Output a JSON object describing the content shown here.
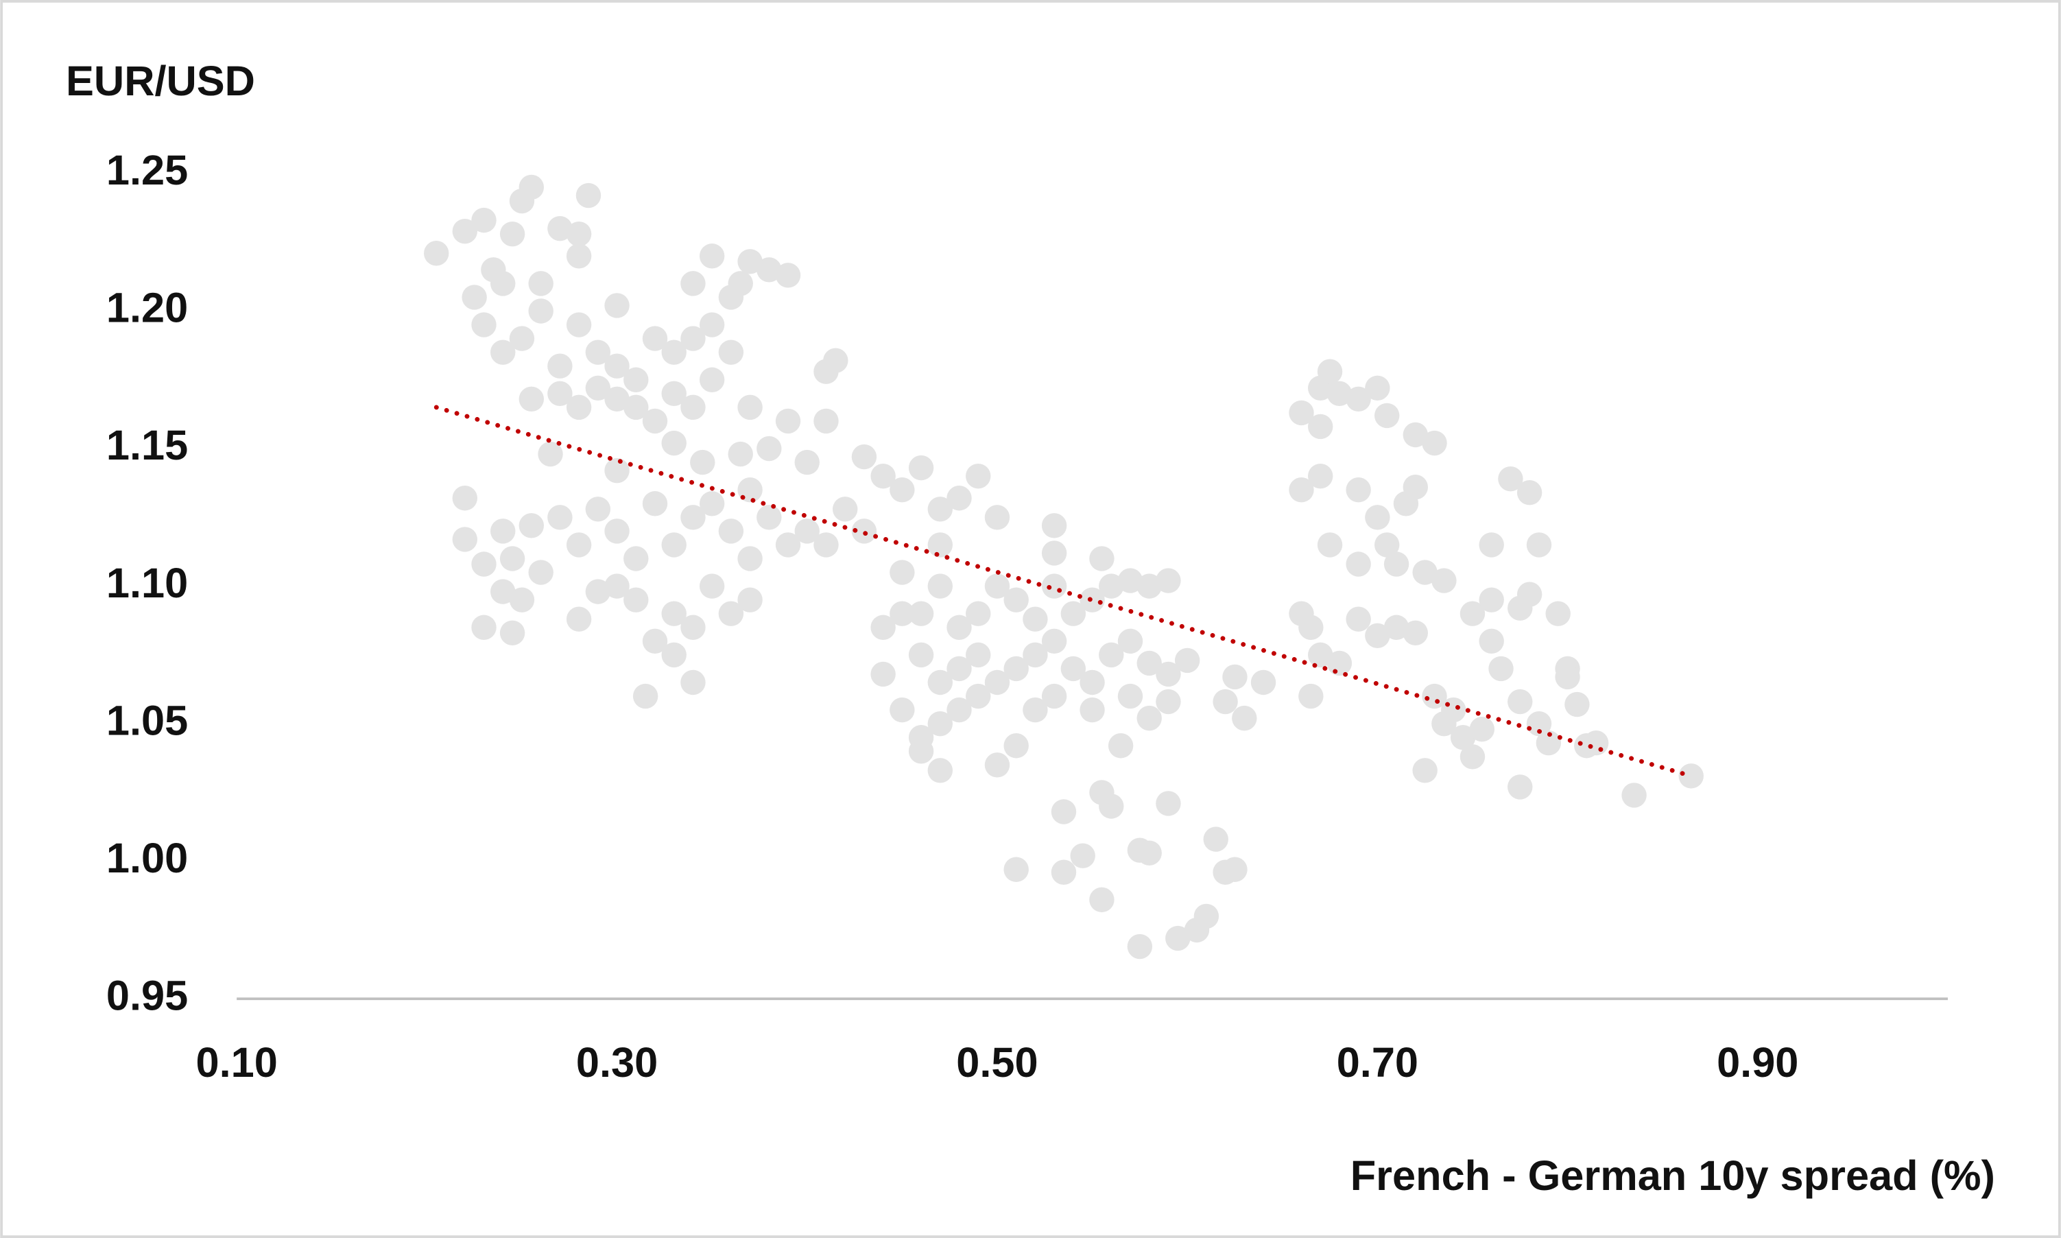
{
  "chart_data": {
    "type": "scatter",
    "y_axis_label": "EUR/USD",
    "x_axis_label": "French - German 10y spread (%)",
    "color": "#e3e3e3",
    "xlim": [
      0.1,
      1.0
    ],
    "ylim": [
      0.95,
      1.25
    ],
    "xticks": [
      {
        "value": 0.1,
        "label": "0.10"
      },
      {
        "value": 0.3,
        "label": "0.30"
      },
      {
        "value": 0.5,
        "label": "0.50"
      },
      {
        "value": 0.7,
        "label": "0.70"
      },
      {
        "value": 0.9,
        "label": "0.90"
      }
    ],
    "yticks": [
      0.95,
      {
        "value": 1.0,
        "label": "1.00"
      },
      1.05,
      {
        "value": 1.1,
        "label": "1.10"
      },
      1.15,
      {
        "value": 1.2,
        "label": "1.20"
      },
      1.25
    ],
    "grid": false,
    "trendline": {
      "color": "#c00000",
      "x": [
        0.205,
        0.865
      ],
      "values": [
        1.165,
        1.031
      ]
    },
    "x": [
      0.205,
      0.22,
      0.23,
      0.235,
      0.245,
      0.25,
      0.255,
      0.24,
      0.225,
      0.26,
      0.27,
      0.28,
      0.285,
      0.28,
      0.23,
      0.24,
      0.25,
      0.26,
      0.27,
      0.28,
      0.29,
      0.3,
      0.31,
      0.32,
      0.33,
      0.34,
      0.35,
      0.36,
      0.36,
      0.35,
      0.34,
      0.33,
      0.32,
      0.31,
      0.3,
      0.29,
      0.28,
      0.27,
      0.265,
      0.255,
      0.3,
      0.34,
      0.35,
      0.37,
      0.38,
      0.39,
      0.365,
      0.37,
      0.365,
      0.38,
      0.39,
      0.4,
      0.41,
      0.41,
      0.415,
      0.33,
      0.345,
      0.22,
      0.22,
      0.23,
      0.24,
      0.245,
      0.255,
      0.26,
      0.27,
      0.28,
      0.29,
      0.3,
      0.31,
      0.32,
      0.33,
      0.34,
      0.35,
      0.36,
      0.37,
      0.38,
      0.39,
      0.3,
      0.31,
      0.29,
      0.28,
      0.3,
      0.35,
      0.36,
      0.34,
      0.33,
      0.32,
      0.33,
      0.34,
      0.315,
      0.23,
      0.245,
      0.25,
      0.24,
      0.37,
      0.37,
      0.4,
      0.41,
      0.43,
      0.44,
      0.45,
      0.46,
      0.47,
      0.48,
      0.49,
      0.5,
      0.43,
      0.42,
      0.45,
      0.46,
      0.47,
      0.48,
      0.49,
      0.5,
      0.51,
      0.52,
      0.53,
      0.54,
      0.55,
      0.56,
      0.57,
      0.58,
      0.59,
      0.44,
      0.45,
      0.46,
      0.47,
      0.48,
      0.49,
      0.5,
      0.51,
      0.52,
      0.53,
      0.54,
      0.55,
      0.56,
      0.57,
      0.58,
      0.59,
      0.6,
      0.53,
      0.53,
      0.555,
      0.44,
      0.45,
      0.46,
      0.47,
      0.48,
      0.49,
      0.46,
      0.47,
      0.5,
      0.51,
      0.52,
      0.53,
      0.55,
      0.565,
      0.57,
      0.58,
      0.59,
      0.62,
      0.625,
      0.63,
      0.64,
      0.51,
      0.535,
      0.535,
      0.545,
      0.555,
      0.56,
      0.555,
      0.575,
      0.58,
      0.59,
      0.575,
      0.595,
      0.605,
      0.61,
      0.615,
      0.62,
      0.625,
      0.47,
      0.67,
      0.675,
      0.68,
      0.69,
      0.7,
      0.705,
      0.66,
      0.67,
      0.72,
      0.73,
      0.66,
      0.67,
      0.69,
      0.72,
      0.715,
      0.7,
      0.705,
      0.675,
      0.69,
      0.71,
      0.725,
      0.735,
      0.66,
      0.665,
      0.69,
      0.7,
      0.71,
      0.72,
      0.67,
      0.68,
      0.665,
      0.73,
      0.735,
      0.74,
      0.745,
      0.75,
      0.755,
      0.725,
      0.75,
      0.76,
      0.76,
      0.765,
      0.76,
      0.77,
      0.78,
      0.785,
      0.775,
      0.78,
      0.795,
      0.775,
      0.785,
      0.79,
      0.8,
      0.8,
      0.805,
      0.81,
      0.815,
      0.775,
      0.835,
      0.865
    ],
    "values": [
      1.221,
      1.229,
      1.233,
      1.215,
      1.228,
      1.24,
      1.245,
      1.21,
      1.205,
      1.21,
      1.23,
      1.22,
      1.242,
      1.228,
      1.195,
      1.185,
      1.19,
      1.2,
      1.18,
      1.195,
      1.185,
      1.18,
      1.175,
      1.19,
      1.185,
      1.19,
      1.195,
      1.205,
      1.185,
      1.175,
      1.165,
      1.17,
      1.16,
      1.165,
      1.168,
      1.172,
      1.165,
      1.17,
      1.148,
      1.168,
      1.202,
      1.21,
      1.22,
      1.218,
      1.215,
      1.213,
      1.21,
      1.165,
      1.148,
      1.15,
      1.16,
      1.145,
      1.16,
      1.178,
      1.182,
      1.152,
      1.145,
      1.132,
      1.117,
      1.108,
      1.12,
      1.11,
      1.122,
      1.105,
      1.125,
      1.115,
      1.128,
      1.12,
      1.11,
      1.13,
      1.115,
      1.125,
      1.13,
      1.12,
      1.135,
      1.125,
      1.115,
      1.1,
      1.095,
      1.098,
      1.088,
      1.142,
      1.1,
      1.09,
      1.085,
      1.09,
      1.08,
      1.075,
      1.065,
      1.06,
      1.085,
      1.083,
      1.095,
      1.098,
      1.095,
      1.11,
      1.12,
      1.115,
      1.147,
      1.14,
      1.135,
      1.143,
      1.128,
      1.132,
      1.14,
      1.125,
      1.12,
      1.128,
      1.105,
      1.09,
      1.1,
      1.085,
      1.09,
      1.1,
      1.095,
      1.088,
      1.1,
      1.09,
      1.095,
      1.1,
      1.102,
      1.1,
      1.102,
      1.085,
      1.09,
      1.075,
      1.065,
      1.07,
      1.075,
      1.065,
      1.07,
      1.075,
      1.08,
      1.07,
      1.065,
      1.075,
      1.08,
      1.072,
      1.068,
      1.073,
      1.122,
      1.112,
      1.11,
      1.068,
      1.055,
      1.045,
      1.05,
      1.055,
      1.06,
      1.04,
      1.033,
      1.035,
      1.042,
      1.055,
      1.06,
      1.055,
      1.042,
      1.06,
      1.052,
      1.058,
      1.058,
      1.067,
      1.052,
      1.065,
      0.997,
      0.996,
      1.018,
      1.002,
      1.025,
      1.02,
      0.986,
      1.004,
      1.003,
      1.021,
      0.969,
      0.972,
      0.975,
      0.98,
      1.008,
      0.996,
      0.997,
      1.115,
      1.172,
      1.178,
      1.17,
      1.168,
      1.172,
      1.162,
      1.163,
      1.158,
      1.155,
      1.152,
      1.135,
      1.14,
      1.135,
      1.136,
      1.13,
      1.125,
      1.115,
      1.115,
      1.108,
      1.108,
      1.105,
      1.102,
      1.09,
      1.085,
      1.088,
      1.082,
      1.085,
      1.083,
      1.075,
      1.072,
      1.06,
      1.06,
      1.05,
      1.055,
      1.045,
      1.038,
      1.048,
      1.033,
      1.09,
      1.095,
      1.08,
      1.07,
      1.115,
      1.139,
      1.134,
      1.115,
      1.092,
      1.097,
      1.09,
      1.058,
      1.05,
      1.043,
      1.07,
      1.067,
      1.057,
      1.042,
      1.043,
      1.027,
      1.024,
      1.031
    ]
  }
}
